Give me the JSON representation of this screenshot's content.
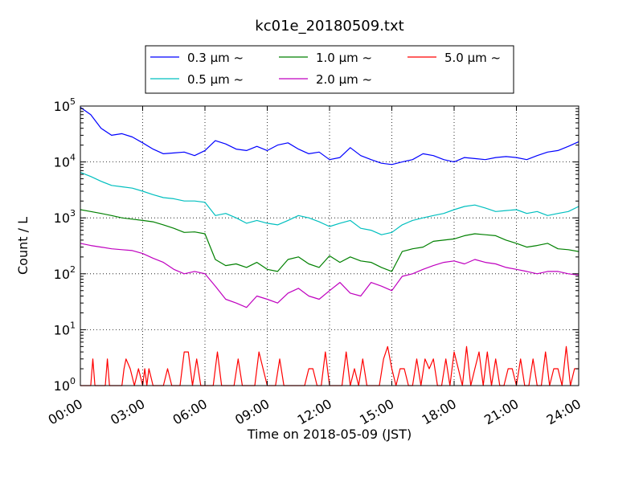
{
  "chart_data": {
    "type": "line",
    "title": "kc01e_20180509.txt",
    "xlabel": "Time on 2018-05-09 (JST)",
    "ylabel": "Count / L",
    "yscale": "log",
    "ylim": [
      1,
      100000
    ],
    "xlim": [
      0,
      24
    ],
    "x_ticks": [
      "00:00",
      "03:00",
      "06:00",
      "09:00",
      "12:00",
      "15:00",
      "18:00",
      "21:00",
      "24:00"
    ],
    "y_ticks": [
      {
        "base": "10",
        "exp": "0"
      },
      {
        "base": "10",
        "exp": "1"
      },
      {
        "base": "10",
        "exp": "2"
      },
      {
        "base": "10",
        "exp": "3"
      },
      {
        "base": "10",
        "exp": "4"
      },
      {
        "base": "10",
        "exp": "5"
      }
    ],
    "grid": true,
    "legend_position": "top-center",
    "series": [
      {
        "name": "0.3 μm ~",
        "color": "#0000ff",
        "x": [
          0,
          0.5,
          1,
          1.5,
          2,
          2.5,
          3,
          3.5,
          4,
          4.5,
          5,
          5.5,
          6,
          6.5,
          7,
          7.5,
          8,
          8.5,
          9,
          9.5,
          10,
          10.5,
          11,
          11.5,
          12,
          12.5,
          13,
          13.5,
          14,
          14.5,
          15,
          15.5,
          16,
          16.5,
          17,
          17.5,
          18,
          18.5,
          19,
          19.5,
          20,
          20.5,
          21,
          21.5,
          22,
          22.5,
          23,
          23.5,
          24
        ],
        "values": [
          95000,
          70000,
          40000,
          30000,
          32000,
          28000,
          22000,
          17000,
          14000,
          14500,
          15000,
          13000,
          16000,
          24000,
          21000,
          17000,
          16000,
          19000,
          16000,
          20000,
          22000,
          17000,
          14000,
          15000,
          11000,
          12000,
          18000,
          13000,
          11000,
          9500,
          9000,
          10000,
          11000,
          14000,
          13000,
          11000,
          10000,
          12000,
          11500,
          11000,
          12000,
          12500,
          12000,
          11000,
          13000,
          15000,
          16000,
          19000,
          23000
        ]
      },
      {
        "name": "0.5 μm ~",
        "color": "#00bfbf",
        "x": [
          0,
          0.5,
          1,
          1.5,
          2,
          2.5,
          3,
          3.5,
          4,
          4.5,
          5,
          5.5,
          6,
          6.5,
          7,
          7.5,
          8,
          8.5,
          9,
          9.5,
          10,
          10.5,
          11,
          11.5,
          12,
          12.5,
          13,
          13.5,
          14,
          14.5,
          15,
          15.5,
          16,
          16.5,
          17,
          17.5,
          18,
          18.5,
          19,
          19.5,
          20,
          20.5,
          21,
          21.5,
          22,
          22.5,
          23,
          23.5,
          24
        ],
        "values": [
          6500,
          5500,
          4500,
          3800,
          3600,
          3400,
          3000,
          2600,
          2300,
          2200,
          2000,
          2000,
          1900,
          1100,
          1200,
          1000,
          800,
          900,
          800,
          750,
          900,
          1100,
          1000,
          850,
          700,
          800,
          900,
          650,
          600,
          500,
          550,
          750,
          900,
          1000,
          1100,
          1200,
          1400,
          1600,
          1700,
          1500,
          1300,
          1350,
          1400,
          1200,
          1300,
          1100,
          1200,
          1300,
          1600
        ]
      },
      {
        "name": "1.0 μm ~",
        "color": "#008000",
        "x": [
          0,
          0.5,
          1,
          1.5,
          2,
          2.5,
          3,
          3.5,
          4,
          4.5,
          5,
          5.5,
          6,
          6.5,
          7,
          7.5,
          8,
          8.5,
          9,
          9.5,
          10,
          10.5,
          11,
          11.5,
          12,
          12.5,
          13,
          13.5,
          14,
          14.5,
          15,
          15.5,
          16,
          16.5,
          17,
          17.5,
          18,
          18.5,
          19,
          19.5,
          20,
          20.5,
          21,
          21.5,
          22,
          22.5,
          23,
          23.5,
          24
        ],
        "values": [
          1400,
          1300,
          1200,
          1100,
          1000,
          950,
          900,
          850,
          750,
          650,
          550,
          560,
          520,
          180,
          140,
          150,
          130,
          160,
          120,
          110,
          180,
          200,
          150,
          130,
          210,
          160,
          200,
          170,
          160,
          130,
          110,
          250,
          280,
          300,
          380,
          400,
          420,
          480,
          520,
          500,
          480,
          400,
          350,
          300,
          320,
          350,
          280,
          270,
          250
        ]
      },
      {
        "name": "2.0 μm ~",
        "color": "#bf00bf",
        "x": [
          0,
          0.5,
          1,
          1.5,
          2,
          2.5,
          3,
          3.5,
          4,
          4.5,
          5,
          5.5,
          6,
          6.5,
          7,
          7.5,
          8,
          8.5,
          9,
          9.5,
          10,
          10.5,
          11,
          11.5,
          12,
          12.5,
          13,
          13.5,
          14,
          14.5,
          15,
          15.5,
          16,
          16.5,
          17,
          17.5,
          18,
          18.5,
          19,
          19.5,
          20,
          20.5,
          21,
          21.5,
          22,
          22.5,
          23,
          23.5,
          24
        ],
        "values": [
          350,
          320,
          300,
          280,
          270,
          260,
          230,
          190,
          160,
          120,
          100,
          110,
          100,
          60,
          35,
          30,
          25,
          40,
          35,
          30,
          45,
          55,
          40,
          35,
          50,
          70,
          45,
          40,
          70,
          60,
          50,
          90,
          100,
          120,
          140,
          160,
          170,
          150,
          180,
          160,
          150,
          130,
          120,
          110,
          100,
          110,
          110,
          100,
          95
        ]
      },
      {
        "name": "5.0 μm ~",
        "color": "#ff0000",
        "x": [
          0,
          0.5,
          0.6,
          0.7,
          1,
          1.2,
          1.3,
          1.4,
          1.6,
          2,
          2.1,
          2.2,
          2.4,
          2.6,
          2.8,
          3,
          3.1,
          3.2,
          3.3,
          3.5,
          3.7,
          4,
          4.2,
          4.4,
          4.6,
          4.8,
          5,
          5.2,
          5.4,
          5.6,
          5.8,
          6,
          6.2,
          6.4,
          6.6,
          6.8,
          7,
          7.2,
          7.4,
          7.6,
          7.8,
          8,
          8.2,
          8.4,
          8.6,
          8.8,
          9,
          9.2,
          9.4,
          9.6,
          9.8,
          10,
          10.2,
          10.4,
          10.6,
          10.8,
          11,
          11.2,
          11.4,
          11.6,
          11.8,
          12,
          12.2,
          12.4,
          12.6,
          12.8,
          13,
          13.2,
          13.4,
          13.6,
          13.8,
          14,
          14.2,
          14.4,
          14.6,
          14.8,
          15,
          15.2,
          15.4,
          15.6,
          15.8,
          16,
          16.2,
          16.4,
          16.6,
          16.8,
          17,
          17.2,
          17.4,
          17.6,
          17.8,
          18,
          18.2,
          18.4,
          18.6,
          18.8,
          19,
          19.2,
          19.4,
          19.6,
          19.8,
          20,
          20.2,
          20.4,
          20.6,
          20.8,
          21,
          21.2,
          21.4,
          21.6,
          21.8,
          22,
          22.2,
          22.4,
          22.6,
          22.8,
          23,
          23.2,
          23.4,
          23.6,
          23.8,
          24
        ],
        "values": [
          1,
          1,
          3,
          1,
          1,
          1,
          3,
          1,
          1,
          1,
          2,
          3,
          2,
          1,
          2,
          1,
          2,
          1,
          2,
          1,
          1,
          1,
          2,
          1,
          1,
          1,
          4,
          4,
          1,
          3,
          1,
          1,
          1,
          1,
          4,
          1,
          1,
          1,
          1,
          3,
          1,
          1,
          1,
          1,
          4,
          2,
          1,
          1,
          1,
          3,
          1,
          1,
          1,
          1,
          1,
          1,
          2,
          2,
          1,
          1,
          4,
          1,
          1,
          1,
          1,
          4,
          1,
          2,
          1,
          3,
          1,
          1,
          1,
          1,
          3,
          5,
          2,
          1,
          2,
          2,
          1,
          1,
          3,
          1,
          3,
          2,
          3,
          1,
          1,
          3,
          1,
          4,
          2,
          1,
          5,
          1,
          2,
          4,
          1,
          4,
          1,
          3,
          1,
          1,
          2,
          2,
          1,
          3,
          1,
          1,
          3,
          1,
          1,
          4,
          1,
          2,
          2,
          1,
          5,
          1,
          2,
          2
        ]
      }
    ]
  }
}
